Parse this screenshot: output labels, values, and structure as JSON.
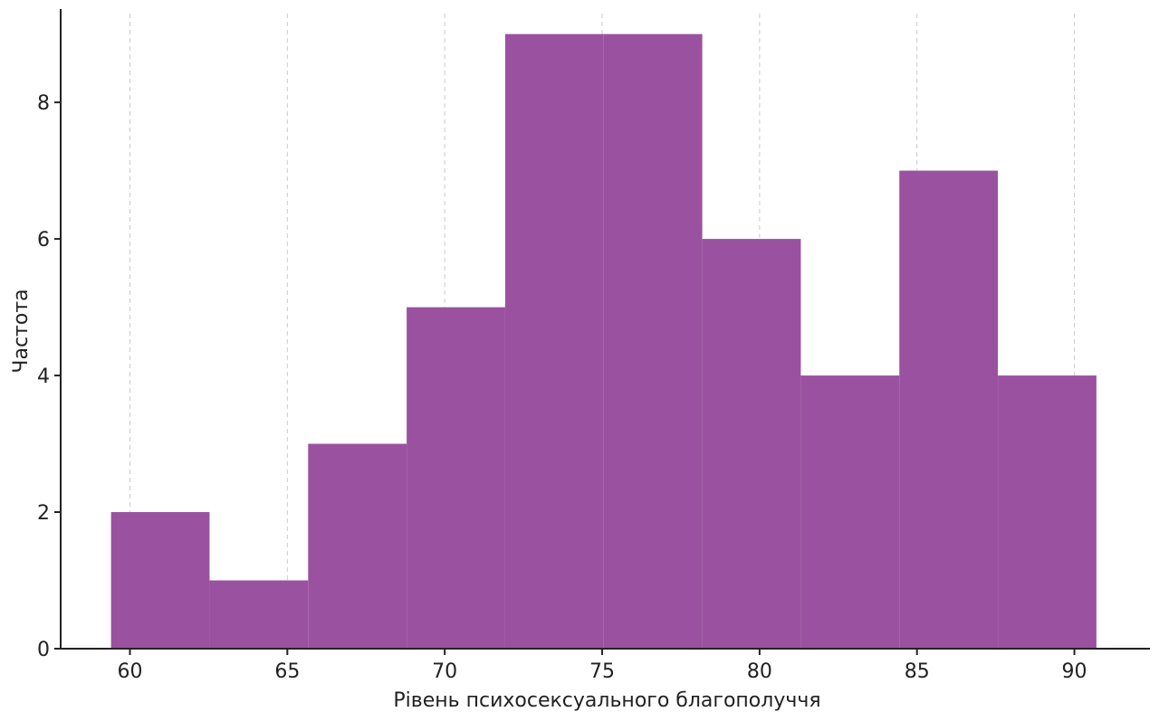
{
  "chart_data": {
    "type": "bar",
    "title": "",
    "xlabel": "Рівень психосексуального благополуччя",
    "ylabel": "Частота",
    "bins": [
      {
        "x0": 59.4,
        "x1": 62.53,
        "count": 2
      },
      {
        "x0": 62.53,
        "x1": 65.66,
        "count": 1
      },
      {
        "x0": 65.66,
        "x1": 68.79,
        "count": 3
      },
      {
        "x0": 68.79,
        "x1": 71.92,
        "count": 5
      },
      {
        "x0": 71.92,
        "x1": 75.05,
        "count": 9
      },
      {
        "x0": 75.05,
        "x1": 78.18,
        "count": 9
      },
      {
        "x0": 78.18,
        "x1": 81.31,
        "count": 6
      },
      {
        "x0": 81.31,
        "x1": 84.44,
        "count": 4
      },
      {
        "x0": 84.44,
        "x1": 87.57,
        "count": 7
      },
      {
        "x0": 87.57,
        "x1": 90.7,
        "count": 4
      }
    ],
    "xticks": [
      60,
      65,
      70,
      75,
      80,
      85,
      90
    ],
    "yticks": [
      0,
      2,
      4,
      6,
      8
    ],
    "xlim": [
      57.8,
      92.4
    ],
    "ylim": [
      0,
      9.3
    ],
    "grid": "x dashed",
    "bar_color": "#9a52a0"
  }
}
